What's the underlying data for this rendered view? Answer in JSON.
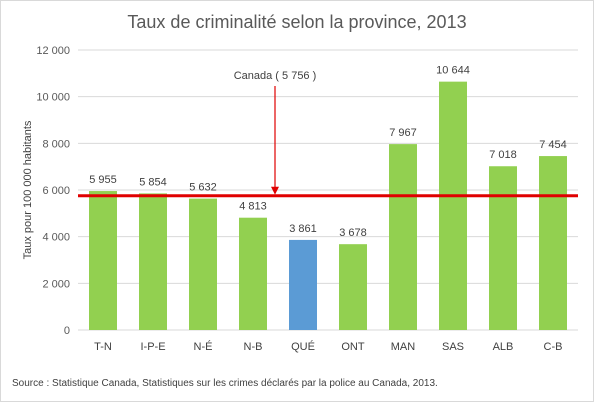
{
  "chart_data": {
    "type": "bar",
    "title": "Taux de criminalité selon la province, 2013",
    "ylabel": "Taux pour 100 000 habitants",
    "xlabel": "",
    "categories": [
      "T-N",
      "I-P-E",
      "N-É",
      "N-B",
      "QUÉ",
      "ONT",
      "MAN",
      "SAS",
      "ALB",
      "C-B"
    ],
    "values": [
      5955,
      5854,
      5632,
      4813,
      3861,
      3678,
      7967,
      10644,
      7018,
      7454
    ],
    "value_labels": [
      "5 955",
      "5 854",
      "5 632",
      "4 813",
      "3 861",
      "3 678",
      "7 967",
      "10 644",
      "7 018",
      "7 454"
    ],
    "ylim": [
      0,
      12000
    ],
    "yticks": [
      0,
      2000,
      4000,
      6000,
      8000,
      10000,
      12000
    ],
    "ytick_labels": [
      "0",
      "2 000",
      "4 000",
      "6 000",
      "8 000",
      "10 000",
      "12 000"
    ],
    "grid": true,
    "bar_color": "#92d050",
    "highlight_color": "#5b9bd5",
    "highlight_index": 4,
    "reference_line": {
      "value": 5756,
      "color": "#e00000",
      "label": "Canada ( 5 756 )"
    }
  },
  "source_note": "Source : Statistique Canada, Statistiques sur les crimes déclarés par la police au Canada, 2013."
}
